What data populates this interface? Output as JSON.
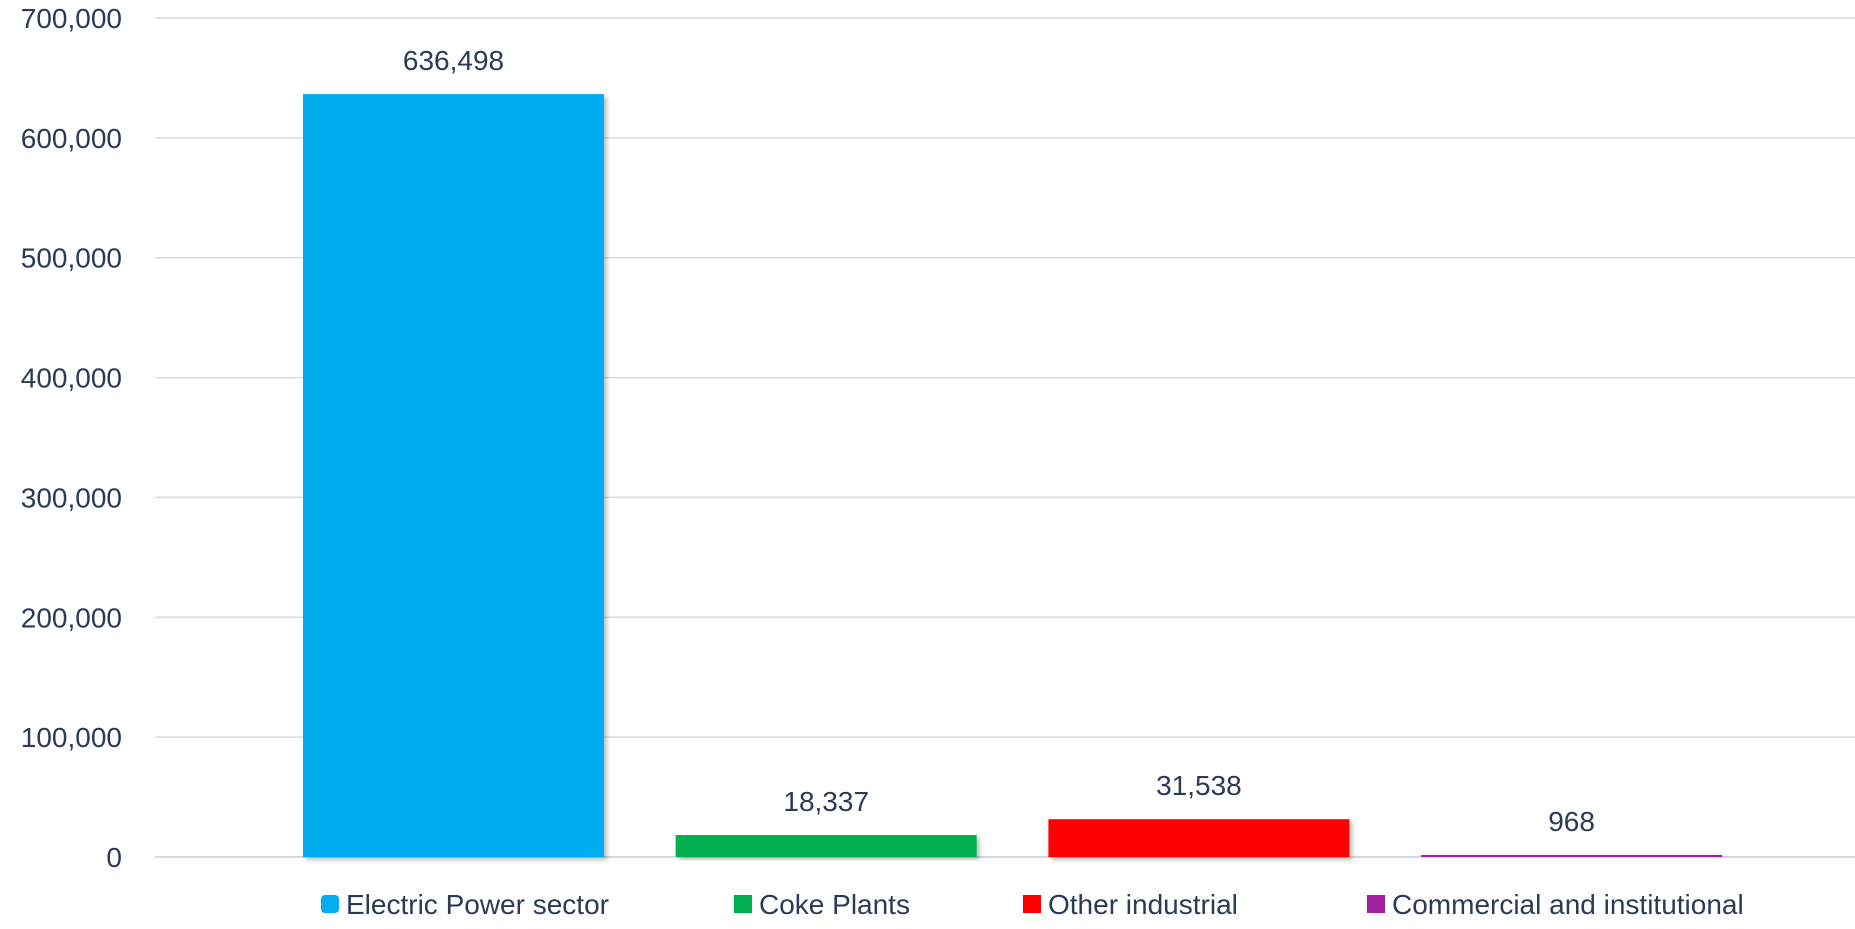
{
  "chart_data": {
    "type": "bar",
    "title": "",
    "xlabel": "",
    "ylabel": "",
    "categories": [
      "Electric Power sector",
      "Coke Plants",
      "Other industrial",
      "Commercial and institutional"
    ],
    "values": [
      636498,
      18337,
      31538,
      968
    ],
    "value_labels": [
      "636,498",
      "18,337",
      "31,538",
      "968"
    ],
    "colors": [
      "#00AEEF",
      "#00B050",
      "#FF0000",
      "#A020A0"
    ],
    "ylim": [
      0,
      700000
    ],
    "yticks": [
      0,
      100000,
      200000,
      300000,
      400000,
      500000,
      600000,
      700000
    ],
    "ytick_labels": [
      "0",
      "100,000",
      "200,000",
      "300,000",
      "400,000",
      "500,000",
      "600,000",
      "700,000"
    ],
    "grid": true,
    "legend": {
      "placement": "bottom",
      "entries": [
        "Electric Power sector",
        "Coke Plants",
        "Other industrial",
        "Commercial and institutional"
      ]
    }
  }
}
